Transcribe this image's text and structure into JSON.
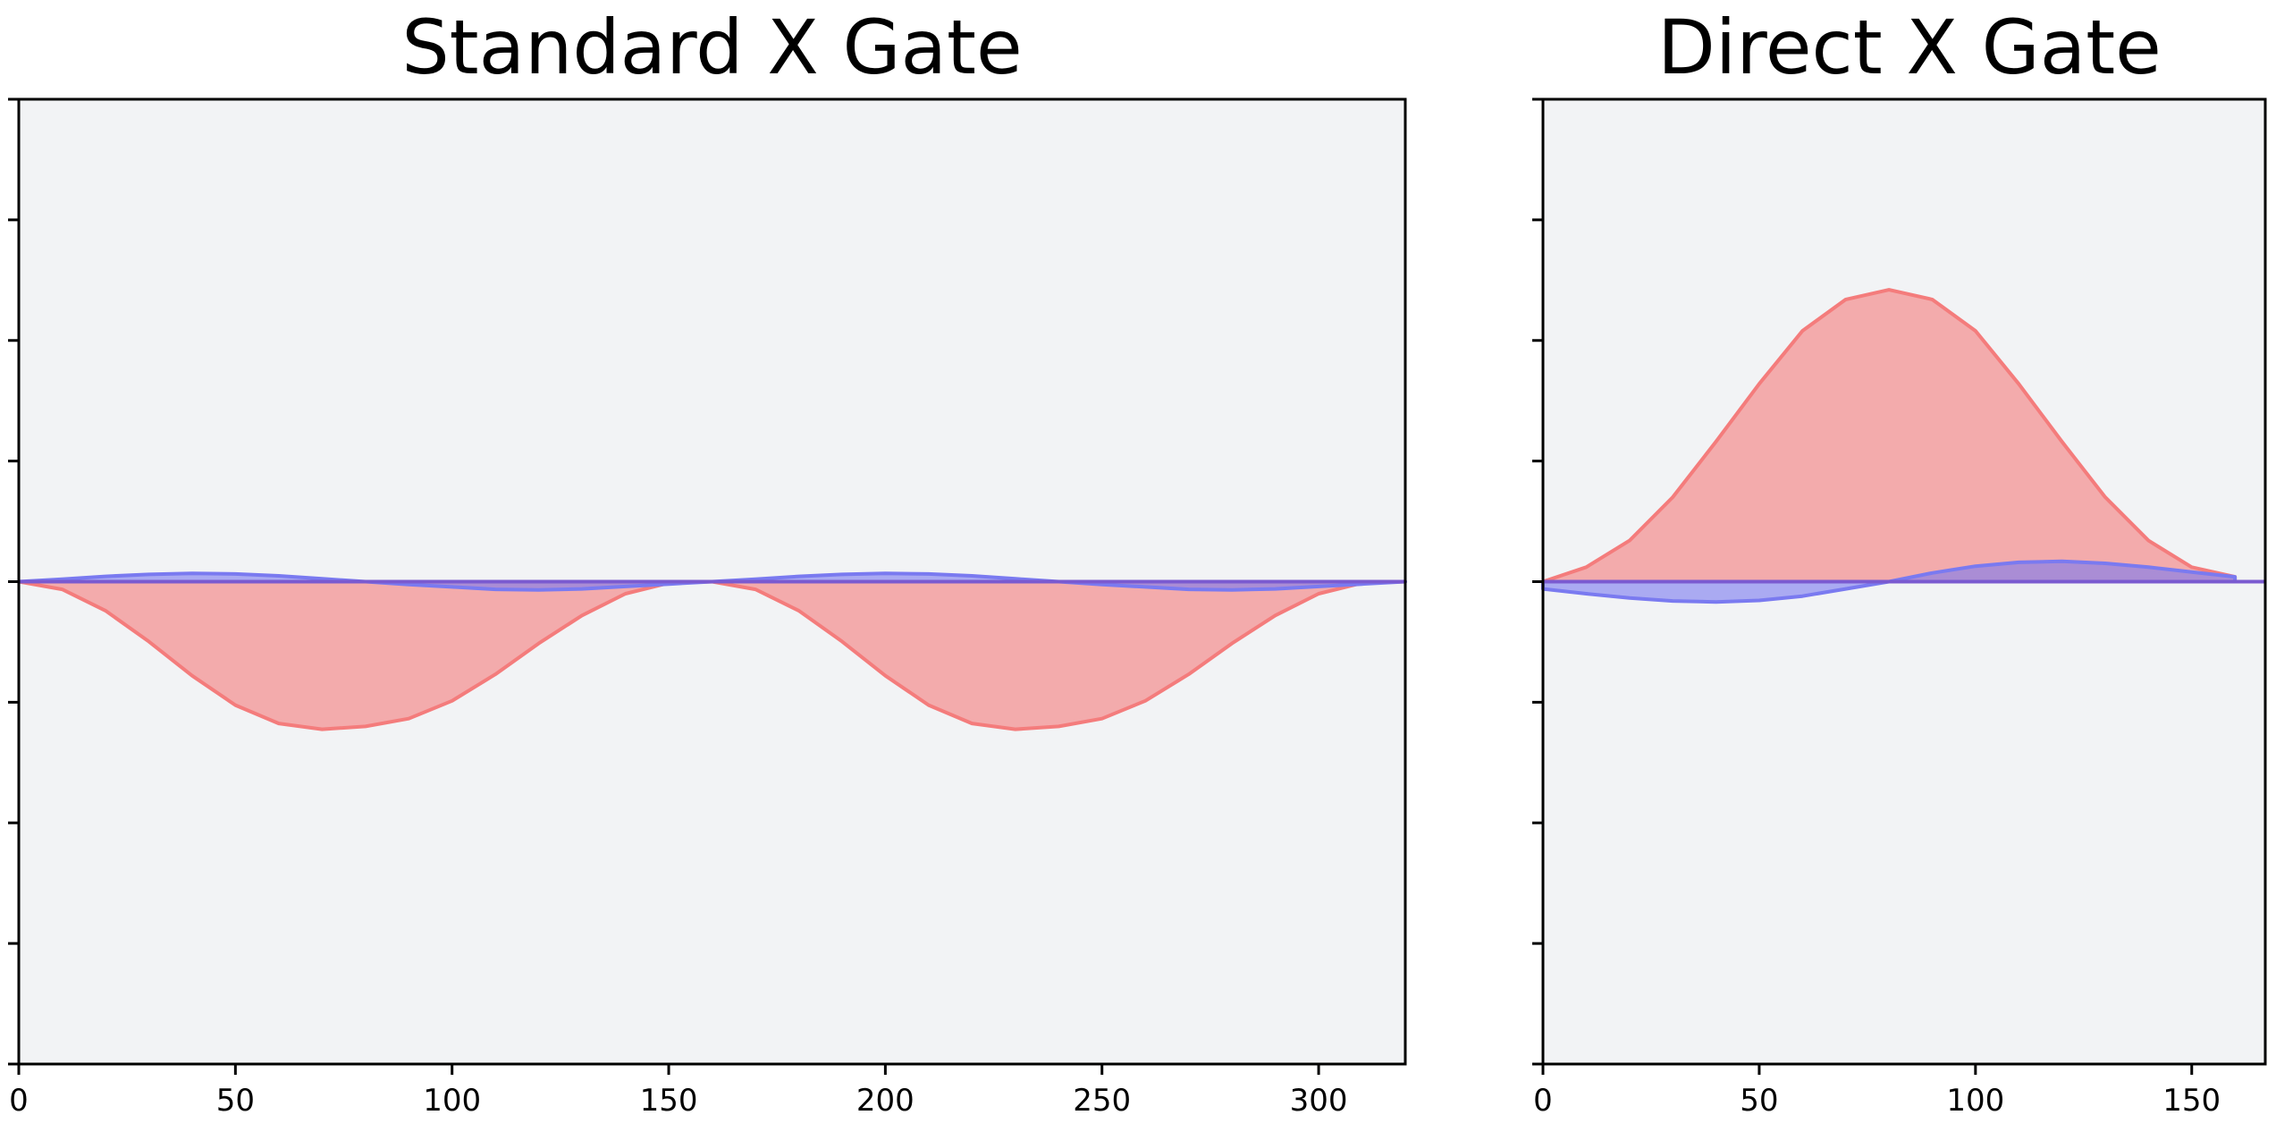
{
  "chart_data": [
    {
      "type": "area",
      "title": "Standard X Gate",
      "xlabel": "",
      "ylabel": "",
      "xlim": [
        0,
        320
      ],
      "ylim": [
        -1.0,
        1.0
      ],
      "xticks": [
        0,
        50,
        100,
        150,
        200,
        250,
        300
      ],
      "yticks_count": 9,
      "grid": false,
      "series": [
        {
          "color": "#f47c7c",
          "x": [
            0,
            10,
            20,
            30,
            40,
            50,
            60,
            70,
            80,
            90,
            100,
            110,
            120,
            130,
            140,
            150,
            160,
            170,
            180,
            190,
            200,
            210,
            220,
            230,
            240,
            250,
            260,
            270,
            280,
            290,
            300,
            310,
            320
          ],
          "values": [
            0,
            -0.016,
            -0.06,
            -0.124,
            -0.195,
            -0.256,
            -0.294,
            -0.306,
            -0.3,
            -0.284,
            -0.247,
            -0.192,
            -0.128,
            -0.07,
            -0.025,
            -0.003,
            0,
            -0.016,
            -0.06,
            -0.124,
            -0.195,
            -0.256,
            -0.294,
            -0.306,
            -0.3,
            -0.284,
            -0.247,
            -0.192,
            -0.128,
            -0.07,
            -0.025,
            -0.003,
            0
          ]
        },
        {
          "color": "#7a7af0",
          "x": [
            0,
            10,
            20,
            30,
            40,
            50,
            60,
            70,
            80,
            90,
            100,
            110,
            120,
            130,
            140,
            150,
            160,
            170,
            180,
            190,
            200,
            210,
            220,
            230,
            240,
            250,
            260,
            270,
            280,
            290,
            300,
            310,
            320
          ],
          "values": [
            0,
            0.005,
            0.011,
            0.015,
            0.017,
            0.016,
            0.012,
            0.006,
            0,
            -0.006,
            -0.011,
            -0.016,
            -0.017,
            -0.015,
            -0.01,
            -0.005,
            0,
            0.005,
            0.011,
            0.015,
            0.017,
            0.016,
            0.012,
            0.006,
            0,
            -0.006,
            -0.011,
            -0.016,
            -0.017,
            -0.015,
            -0.01,
            -0.005,
            0
          ]
        }
      ]
    },
    {
      "type": "area",
      "title": "Direct X Gate",
      "xlabel": "",
      "ylabel": "",
      "xlim": [
        0,
        167
      ],
      "ylim": [
        -1.0,
        1.0
      ],
      "xticks": [
        0,
        50,
        100,
        150
      ],
      "yticks_count": 9,
      "grid": false,
      "series": [
        {
          "color": "#f47c7c",
          "x": [
            0,
            10,
            20,
            30,
            40,
            50,
            60,
            70,
            80,
            90,
            100,
            110,
            120,
            130,
            140,
            150,
            160
          ],
          "values": [
            0,
            0.03,
            0.085,
            0.175,
            0.29,
            0.41,
            0.52,
            0.585,
            0.605,
            0.585,
            0.52,
            0.41,
            0.29,
            0.175,
            0.085,
            0.03,
            0.01
          ]
        },
        {
          "color": "#7a7af0",
          "x": [
            0,
            10,
            20,
            30,
            40,
            50,
            60,
            70,
            80,
            90,
            100,
            110,
            120,
            130,
            140,
            150,
            160
          ],
          "values": [
            -0.015,
            -0.025,
            -0.034,
            -0.04,
            -0.042,
            -0.039,
            -0.03,
            -0.015,
            0,
            0.018,
            0.032,
            0.04,
            0.042,
            0.038,
            0.03,
            0.02,
            0.01
          ]
        }
      ]
    }
  ]
}
